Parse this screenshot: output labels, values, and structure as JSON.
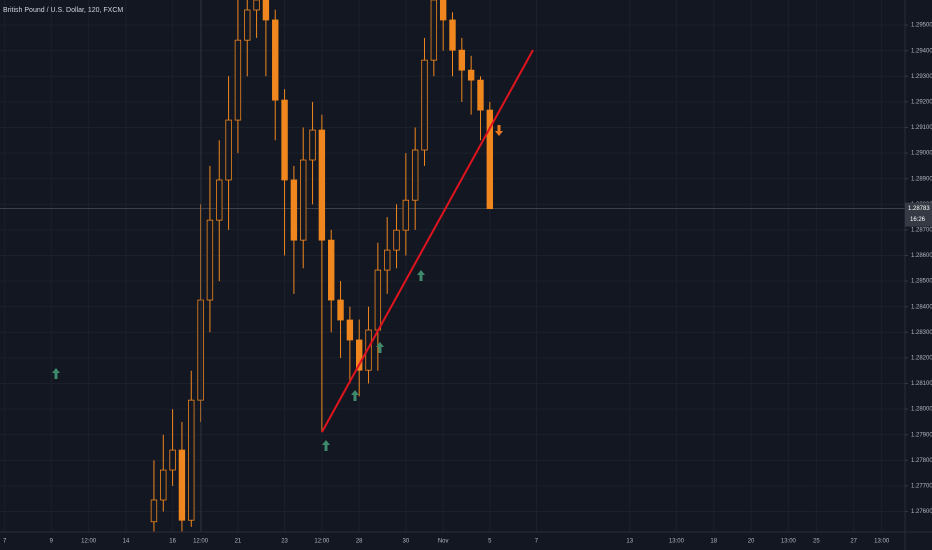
{
  "chart_data": {
    "type": "candlestick",
    "title": "British Pound / U.S. Dollar, 120, FXCM",
    "color": "#f0861e",
    "grid": true,
    "categories": [
      "7",
      null,
      null,
      null,
      null,
      "9",
      null,
      null,
      null,
      "12:00",
      null,
      null,
      null,
      "14",
      null,
      null,
      null,
      null,
      "16",
      null,
      null,
      "12:00",
      null,
      null,
      null,
      "21",
      null,
      null,
      null,
      null,
      "23",
      null,
      null,
      null,
      "12:00",
      null,
      null,
      null,
      "28",
      null,
      null,
      null,
      null,
      "30",
      null,
      null,
      null,
      "Nov",
      null,
      null,
      null,
      null,
      "5",
      null,
      null,
      null,
      null,
      "7",
      null,
      null,
      null,
      null,
      null,
      null,
      null,
      null,
      null,
      "13",
      null,
      null,
      null,
      null,
      "13:00",
      null,
      null,
      null,
      "18",
      null,
      null,
      null,
      "20",
      null,
      null,
      null,
      "13:00",
      null,
      null,
      "25",
      null,
      null,
      null,
      "27",
      null,
      null,
      "13:00",
      null,
      null
    ],
    "open": [
      null,
      null,
      null,
      null,
      null,
      null,
      null,
      null,
      null,
      null,
      null,
      null,
      null,
      null,
      null,
      null,
      1.2756,
      1.27645,
      1.27762,
      1.2784,
      1.27566,
      1.28035,
      1.28426,
      1.28738,
      1.28895,
      1.29129,
      1.29441,
      1.29559,
      1.29598,
      1.2952,
      1.29207,
      1.28895,
      1.2866,
      1.28973,
      1.2909,
      1.2866,
      1.28426,
      1.28348,
      1.2827,
      1.28152,
      1.28309,
      1.28543,
      1.28621,
      1.28699,
      1.28816,
      1.29012,
      1.29363,
      1.29598,
      1.2952,
      1.29402,
      1.29324,
      1.29285,
      1.29168,
      null,
      null,
      null,
      null,
      null,
      null,
      null,
      null,
      null,
      null,
      null,
      null,
      null,
      null,
      null,
      null,
      null,
      null,
      null,
      null,
      null,
      null,
      null,
      null,
      null,
      null,
      null,
      null,
      null,
      null,
      null,
      null,
      null,
      null,
      null,
      null,
      null,
      null,
      null,
      null,
      null,
      null,
      null,
      null
    ],
    "high": [
      null,
      null,
      null,
      null,
      null,
      null,
      null,
      null,
      null,
      null,
      null,
      null,
      null,
      null,
      null,
      null,
      1.278,
      1.279,
      1.28,
      1.2795,
      1.2815,
      1.288,
      1.2895,
      1.2905,
      1.293,
      1.296,
      1.2965,
      1.297,
      1.297,
      1.2956,
      1.2925,
      1.2895,
      1.291,
      1.292,
      1.2915,
      1.287,
      1.285,
      1.284,
      1.2835,
      1.284,
      1.2865,
      1.2875,
      1.288,
      1.29,
      1.291,
      1.2945,
      1.297,
      1.2965,
      1.2955,
      1.2945,
      1.2938,
      1.293,
      1.292,
      null,
      null,
      null,
      null,
      null,
      null,
      null,
      null,
      null,
      null,
      null,
      null,
      null,
      null,
      null,
      null,
      null,
      null,
      null,
      null,
      null,
      null,
      null,
      null,
      null,
      null,
      null,
      null,
      null,
      null,
      null,
      null,
      null,
      null,
      null,
      null,
      null,
      null,
      null,
      null,
      null,
      null,
      null,
      null
    ],
    "low": [
      null,
      null,
      null,
      null,
      null,
      null,
      null,
      null,
      null,
      null,
      null,
      null,
      null,
      null,
      null,
      null,
      1.2752,
      1.276,
      1.277,
      1.2752,
      1.2754,
      1.2795,
      1.283,
      1.285,
      1.287,
      1.29,
      1.293,
      1.2945,
      1.293,
      1.2905,
      1.286,
      1.2845,
      1.2855,
      1.288,
      1.2791,
      1.283,
      1.282,
      1.281,
      1.2805,
      1.281,
      1.2815,
      1.2845,
      1.2855,
      1.286,
      1.287,
      1.2895,
      1.293,
      1.294,
      1.293,
      1.292,
      1.2915,
      1.2905,
      1.28783,
      null,
      null,
      null,
      null,
      null,
      null,
      null,
      null,
      null,
      null,
      null,
      null,
      null,
      null,
      null,
      null,
      null,
      null,
      null,
      null,
      null,
      null,
      null,
      null,
      null,
      null,
      null,
      null,
      null,
      null,
      null,
      null,
      null,
      null,
      null,
      null,
      null,
      null,
      null,
      null,
      null,
      null,
      null,
      null
    ],
    "close": [
      null,
      null,
      null,
      null,
      null,
      null,
      null,
      null,
      null,
      null,
      null,
      null,
      null,
      null,
      null,
      null,
      1.27645,
      1.27762,
      1.2784,
      1.27566,
      1.28035,
      1.28426,
      1.28738,
      1.28895,
      1.29129,
      1.29441,
      1.29559,
      1.29598,
      1.2952,
      1.29207,
      1.28895,
      1.2866,
      1.28973,
      1.2909,
      1.2866,
      1.28426,
      1.28348,
      1.2827,
      1.28152,
      1.28309,
      1.28543,
      1.28621,
      1.28699,
      1.28816,
      1.29012,
      1.29363,
      1.29598,
      1.2952,
      1.29402,
      1.29324,
      1.29285,
      1.29168,
      1.28783,
      null,
      null,
      null,
      null,
      null,
      null,
      null,
      null,
      null,
      null,
      null,
      null,
      null,
      null,
      null,
      null,
      null,
      null,
      null,
      null,
      null,
      null,
      null,
      null,
      null,
      null,
      null,
      null,
      null,
      null,
      null,
      null,
      null,
      null,
      null,
      null,
      null,
      null,
      null,
      null,
      null,
      null,
      null,
      null
    ],
    "ylim": [
      1.2752,
      1.29598
    ],
    "yticks": [
      {
        "value": 1.276,
        "label": "1.27600"
      },
      {
        "value": 1.277,
        "label": "1.27700"
      },
      {
        "value": 1.278,
        "label": "1.27800"
      },
      {
        "value": 1.279,
        "label": "1.27900"
      },
      {
        "value": 1.28,
        "label": "1.28000"
      },
      {
        "value": 1.281,
        "label": "1.28100"
      },
      {
        "value": 1.282,
        "label": "1.28200"
      },
      {
        "value": 1.283,
        "label": "1.28300"
      },
      {
        "value": 1.284,
        "label": "1.28400"
      },
      {
        "value": 1.285,
        "label": "1.28500"
      },
      {
        "value": 1.286,
        "label": "1.28600"
      },
      {
        "value": 1.287,
        "label": "1.28700"
      },
      {
        "value": 1.288,
        "label": "1.28800"
      },
      {
        "value": 1.289,
        "label": "1.28900"
      },
      {
        "value": 1.29,
        "label": "1.29000"
      },
      {
        "value": 1.291,
        "label": "1.29100"
      },
      {
        "value": 1.292,
        "label": "1.29200"
      },
      {
        "value": 1.293,
        "label": "1.29300"
      },
      {
        "value": 1.294,
        "label": "1.29400"
      },
      {
        "value": 1.295,
        "label": "1.29500"
      }
    ],
    "current_price": 1.28783,
    "countdown": "16:26"
  }
}
